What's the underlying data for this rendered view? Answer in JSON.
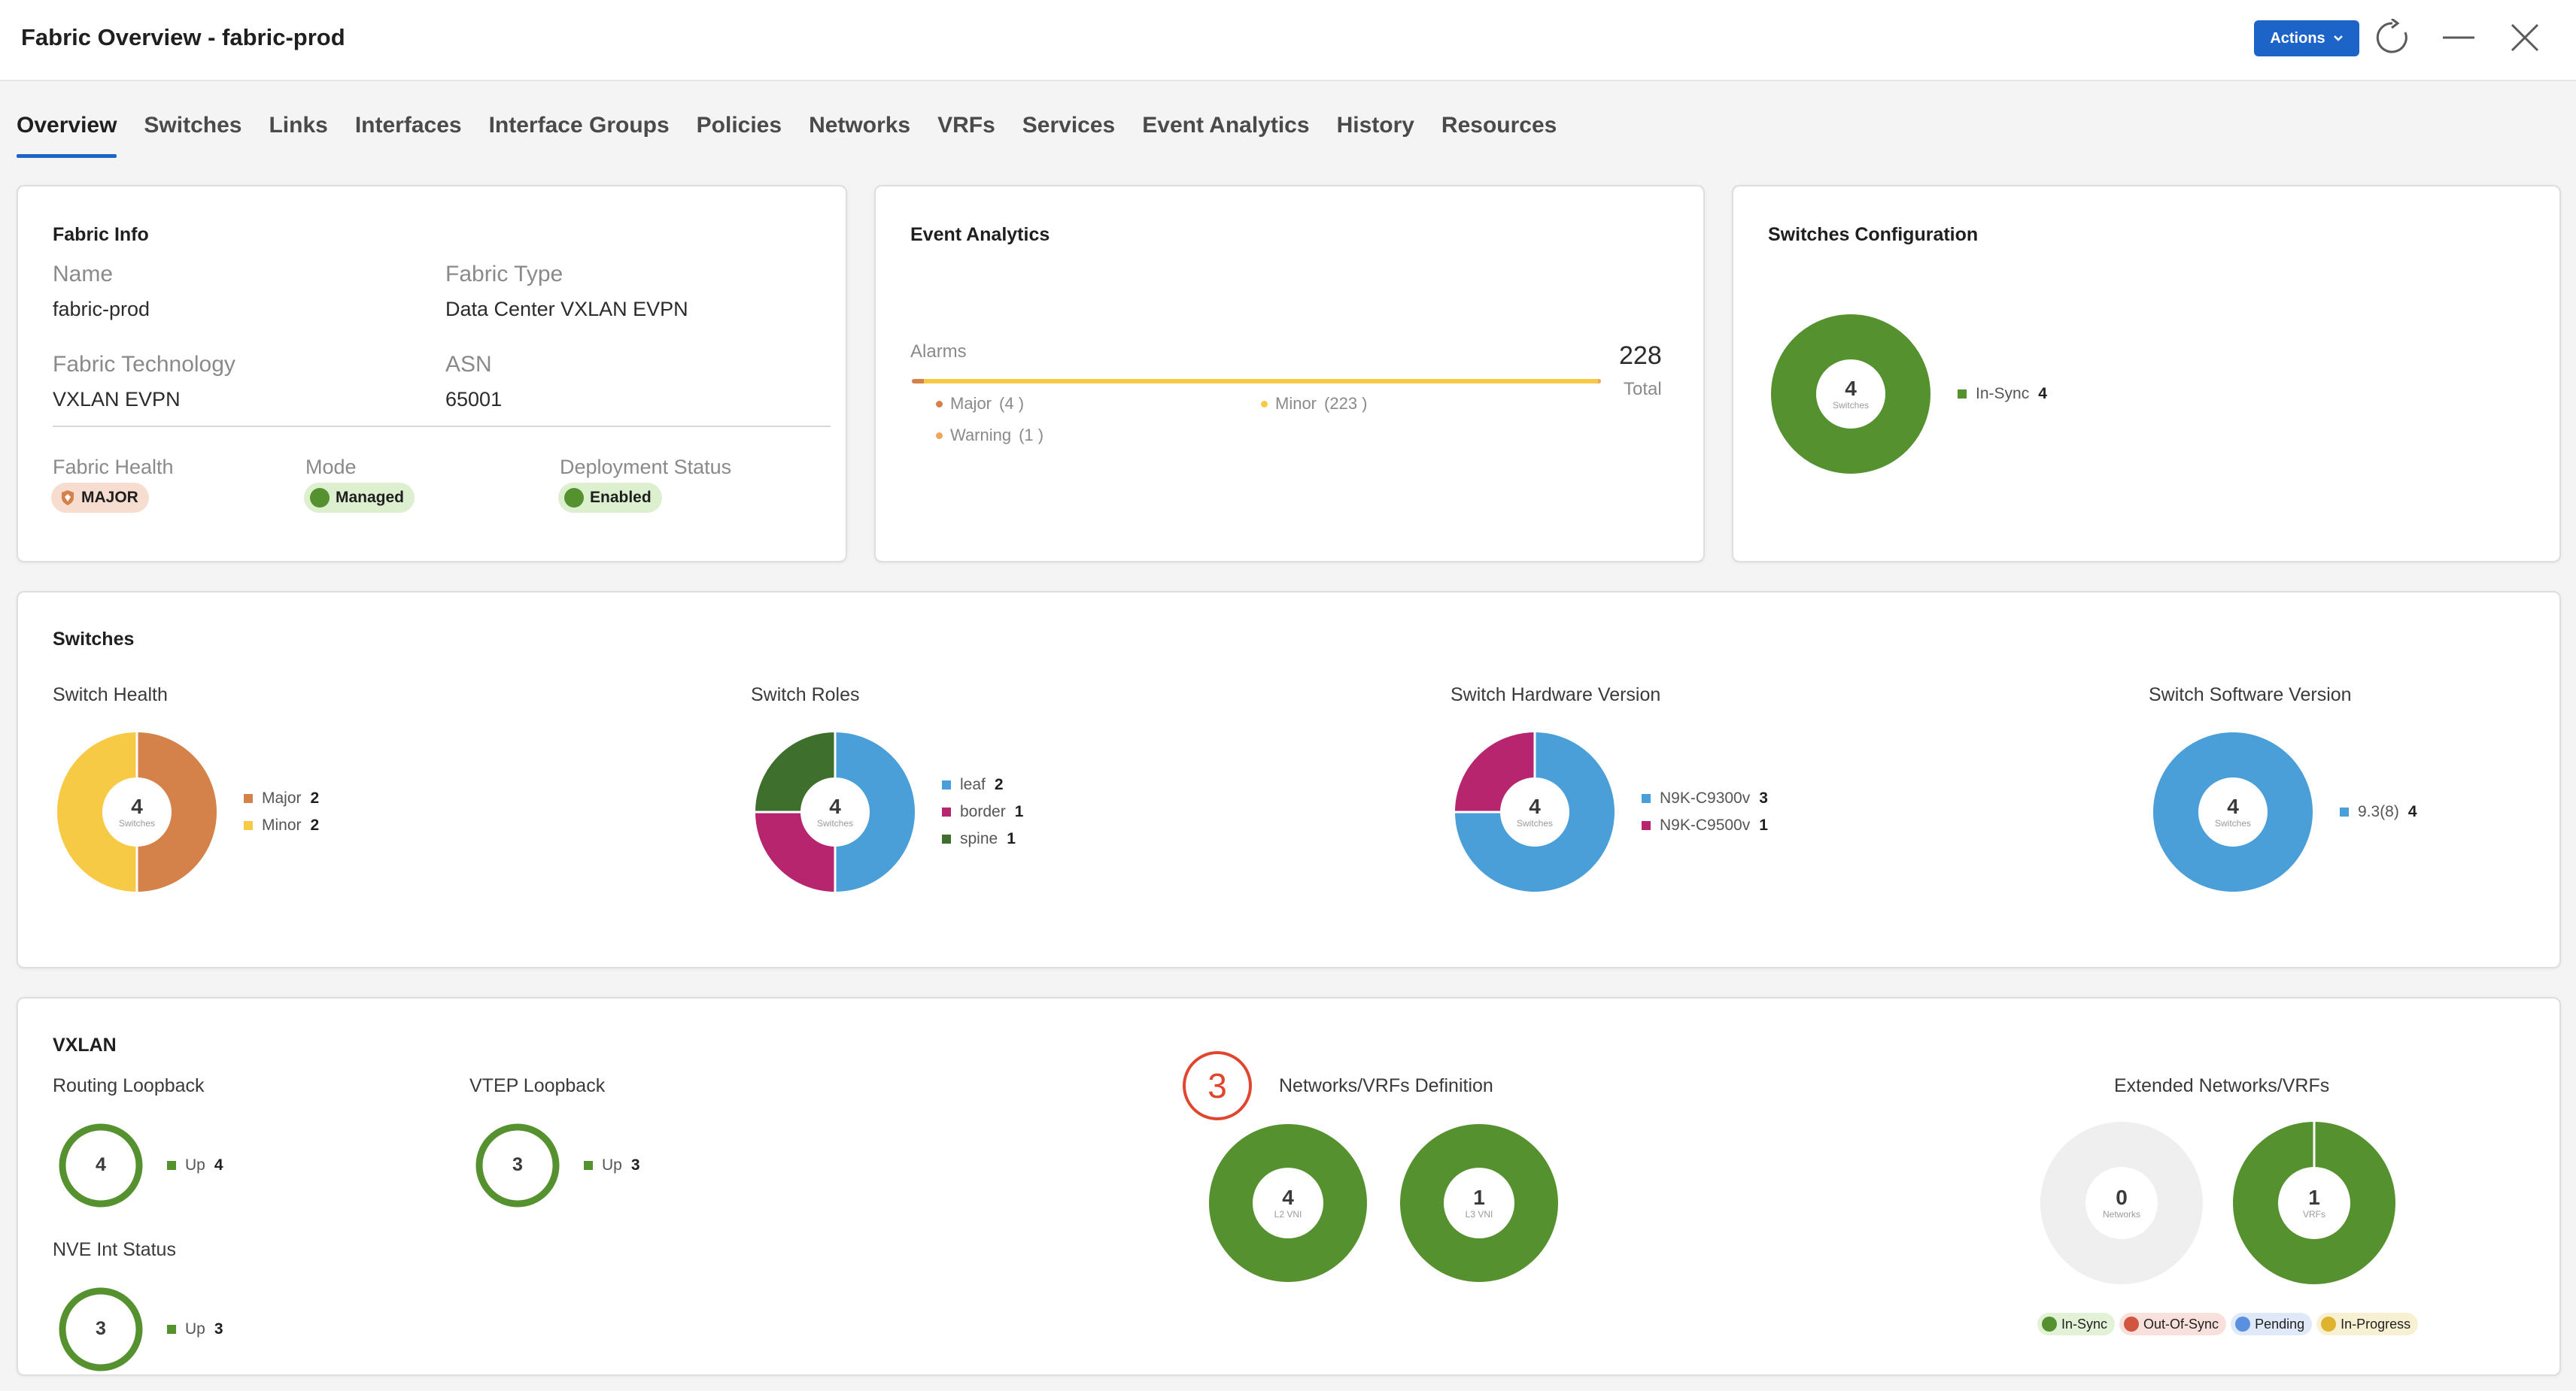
{
  "header": {
    "title": "Fabric Overview - fabric-prod",
    "actions_label": "Actions",
    "icons": [
      "chevron-down-icon",
      "refresh-icon",
      "minimize-icon",
      "close-icon"
    ]
  },
  "tabs": [
    {
      "label": "Overview",
      "active": true
    },
    {
      "label": "Switches"
    },
    {
      "label": "Links"
    },
    {
      "label": "Interfaces"
    },
    {
      "label": "Interface Groups"
    },
    {
      "label": "Policies"
    },
    {
      "label": "Networks"
    },
    {
      "label": "VRFs"
    },
    {
      "label": "Services"
    },
    {
      "label": "Event Analytics"
    },
    {
      "label": "History"
    },
    {
      "label": "Resources"
    }
  ],
  "fabric_info": {
    "title": "Fabric Info",
    "name_label": "Name",
    "name_value": "fabric-prod",
    "type_label": "Fabric Type",
    "type_value": "Data Center VXLAN EVPN",
    "tech_label": "Fabric Technology",
    "tech_value": "VXLAN EVPN",
    "asn_label": "ASN",
    "asn_value": "65001",
    "health_label": "Fabric Health",
    "health_value": "MAJOR",
    "mode_label": "Mode",
    "mode_value": "Managed",
    "deploy_label": "Deployment Status",
    "deploy_value": "Enabled"
  },
  "event_analytics": {
    "title": "Event Analytics",
    "alarms_label": "Alarms",
    "total_value": "228",
    "total_label": "Total",
    "major_label": "Major",
    "major_count": "(4 )",
    "minor_label": "Minor",
    "minor_count": "(223 )",
    "warning_label": "Warning",
    "warning_count": "(1 )",
    "chart_data": {
      "type": "bar",
      "categories": [
        "Major",
        "Minor",
        "Warning"
      ],
      "values": [
        4,
        223,
        1
      ],
      "total": 228
    }
  },
  "switches_config": {
    "title": "Switches Configuration",
    "center_num": "4",
    "center_sub": "Switches",
    "legend": [
      {
        "label": "In-Sync",
        "value": "4",
        "color": "#56912f"
      }
    ],
    "chart_data": {
      "type": "pie",
      "categories": [
        "In-Sync"
      ],
      "values": [
        4
      ]
    }
  },
  "switches": {
    "title": "Switches",
    "health": {
      "label": "Switch Health",
      "center_num": "4",
      "center_sub": "Switches",
      "legend": [
        {
          "label": "Major",
          "value": "2",
          "color": "#d4824a"
        },
        {
          "label": "Minor",
          "value": "2",
          "color": "#f7ca45"
        }
      ],
      "chart_data": {
        "type": "pie",
        "categories": [
          "Major",
          "Minor"
        ],
        "values": [
          2,
          2
        ]
      }
    },
    "roles": {
      "label": "Switch Roles",
      "center_num": "4",
      "center_sub": "Switches",
      "legend": [
        {
          "label": "leaf",
          "value": "2",
          "color": "#4a9fd8"
        },
        {
          "label": "border",
          "value": "1",
          "color": "#b6256d"
        },
        {
          "label": "spine",
          "value": "1",
          "color": "#3e6f2c"
        }
      ],
      "chart_data": {
        "type": "pie",
        "categories": [
          "leaf",
          "border",
          "spine"
        ],
        "values": [
          2,
          1,
          1
        ]
      }
    },
    "hardware": {
      "label": "Switch Hardware Version",
      "center_num": "4",
      "center_sub": "Switches",
      "legend": [
        {
          "label": "N9K-C9300v",
          "value": "3",
          "color": "#4a9fd8"
        },
        {
          "label": "N9K-C9500v",
          "value": "1",
          "color": "#b6256d"
        }
      ],
      "chart_data": {
        "type": "pie",
        "categories": [
          "N9K-C9300v",
          "N9K-C9500v"
        ],
        "values": [
          3,
          1
        ]
      }
    },
    "software": {
      "label": "Switch Software Version",
      "center_num": "4",
      "center_sub": "Switches",
      "legend": [
        {
          "label": "9.3(8)",
          "value": "4",
          "color": "#4a9fd8"
        }
      ],
      "chart_data": {
        "type": "pie",
        "categories": [
          "9.3(8)"
        ],
        "values": [
          4
        ]
      }
    }
  },
  "vxlan": {
    "title": "VXLAN",
    "routing": {
      "label": "Routing Loopback",
      "center_num": "4",
      "legend_label": "Up",
      "legend_value": "4"
    },
    "vtep": {
      "label": "VTEP Loopback",
      "center_num": "3",
      "legend_label": "Up",
      "legend_value": "3"
    },
    "nve": {
      "label": "NVE Int Status",
      "center_num": "3",
      "legend_label": "Up",
      "legend_value": "3"
    },
    "definition": {
      "badge": "3",
      "label": "Networks/VRFs Definition",
      "l2": {
        "center_num": "4",
        "center_sub": "L2 VNI"
      },
      "l3": {
        "center_num": "1",
        "center_sub": "L3 VNI"
      }
    },
    "extended": {
      "label": "Extended Networks/VRFs",
      "networks": {
        "center_num": "0",
        "center_sub": "Networks"
      },
      "vrfs": {
        "center_num": "1",
        "center_sub": "VRFs"
      },
      "status": [
        {
          "label": "In-Sync",
          "color": "#56912f",
          "bg": "#e3f1d6"
        },
        {
          "label": "Out-Of-Sync",
          "color": "#d2553f",
          "bg": "#f8e1dc"
        },
        {
          "label": "Pending",
          "color": "#5b8fe0",
          "bg": "#e0e9f8"
        },
        {
          "label": "In-Progress",
          "color": "#e0b32e",
          "bg": "#f8f0d2"
        }
      ]
    }
  }
}
